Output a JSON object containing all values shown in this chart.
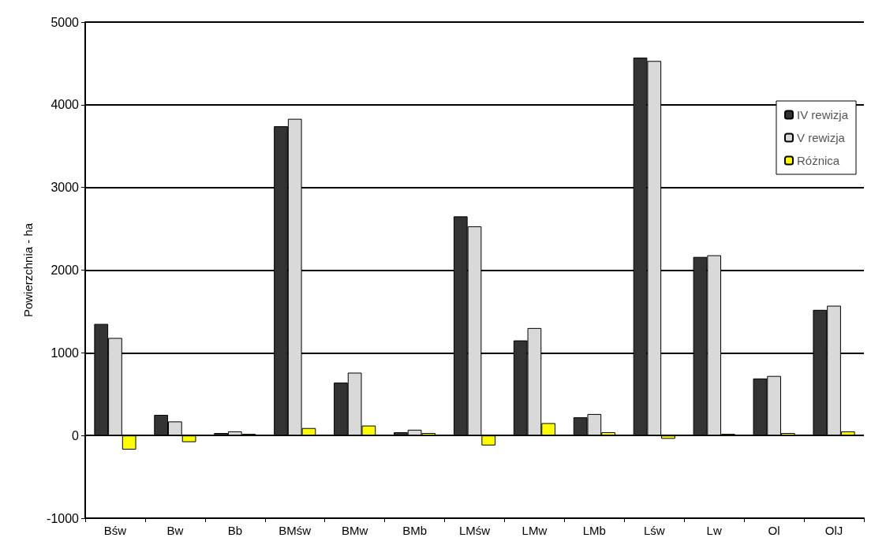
{
  "chart_data": {
    "type": "bar",
    "ylabel": "Powierzchnia - ha",
    "categories": [
      "Bśw",
      "Bw",
      "Bb",
      "BMśw",
      "BMw",
      "BMb",
      "LMśw",
      "LMw",
      "LMb",
      "Lśw",
      "Lw",
      "Ol",
      "OlJ"
    ],
    "series": [
      {
        "name": "IV rewizja",
        "color": "#333333",
        "values": [
          1350,
          250,
          30,
          3740,
          640,
          40,
          2650,
          1150,
          220,
          4570,
          2160,
          690,
          1520
        ]
      },
      {
        "name": "V rewizja",
        "color": "#d9d9d9",
        "values": [
          1180,
          170,
          50,
          3830,
          760,
          70,
          2530,
          1300,
          260,
          4530,
          2180,
          720,
          1570
        ]
      },
      {
        "name": "Różnica",
        "color": "#ffff00",
        "values": [
          -170,
          -80,
          20,
          90,
          120,
          30,
          -120,
          150,
          40,
          -40,
          20,
          30,
          50
        ]
      }
    ],
    "ylim": [
      -1000,
      5000
    ],
    "yticks": [
      -1000,
      0,
      1000,
      2000,
      3000,
      4000,
      5000
    ],
    "grid": "y",
    "legend": "top right"
  }
}
